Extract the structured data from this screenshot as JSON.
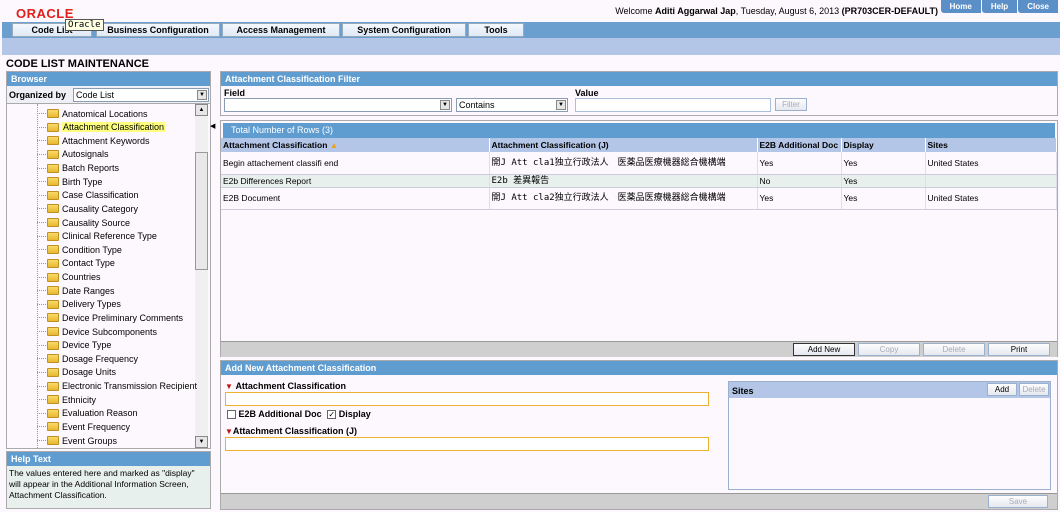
{
  "header": {
    "logo": "ORACLE",
    "tooltip": "Oracle",
    "welcome_prefix": "Welcome ",
    "user": "Aditi Aggarwal Jap",
    "date": ", Tuesday, August 6, 2013 ",
    "profile": "(PR703CER-DEFAULT)",
    "links": [
      "Home",
      "Help",
      "Close"
    ]
  },
  "nav": {
    "tabs": [
      "Code List",
      "Business Configuration",
      "Access Management",
      "System Configuration",
      "Tools"
    ]
  },
  "page_title": "CODE LIST MAINTENANCE",
  "browser": {
    "title": "Browser",
    "organized_by_label": "Organized by",
    "organized_by_value": "Code List",
    "items": [
      "Anatomical Locations",
      "Attachment Classification",
      "Attachment Keywords",
      "Autosignals",
      "Batch Reports",
      "Birth Type",
      "Case Classification",
      "Causality Category",
      "Causality Source",
      "Clinical Reference Type",
      "Condition Type",
      "Contact Type",
      "Countries",
      "Date Ranges",
      "Delivery Types",
      "Device Preliminary Comments",
      "Device Subcomponents",
      "Device Type",
      "Dosage Frequency",
      "Dosage Units",
      "Electronic Transmission Recipient",
      "Ethnicity",
      "Evaluation Reason",
      "Event Frequency",
      "Event Groups"
    ],
    "selected": "Attachment Classification"
  },
  "help": {
    "title": "Help Text",
    "text": "The values entered here and marked as \"display\" will appear in the Additional Information Screen, Attachment Classification."
  },
  "filter": {
    "title": "Attachment Classification Filter",
    "field_label": "Field",
    "field_value": "",
    "operator": "Contains",
    "value_label": "Value",
    "value": "",
    "filter_button": "Filter"
  },
  "grid": {
    "title": "Total Number of Rows (3)",
    "columns": [
      "Attachment Classification",
      "Attachment Classification (J)",
      "E2B Additional Doc",
      "Display",
      "Sites"
    ],
    "rows": [
      [
        "Begin attachement classifi end",
        "開J Att cla1独立行政法人　医薬品医療機器総合機構端",
        "Yes",
        "Yes",
        "United States"
      ],
      [
        "E2b Differences Report",
        "E2b 差異報告",
        "No",
        "Yes",
        ""
      ],
      [
        "E2B Document",
        "開J Att cla2独立行政法人　医薬品医療機器総合機構端",
        "Yes",
        "Yes",
        "United States"
      ]
    ],
    "buttons": [
      "Add New",
      "Copy",
      "Delete",
      "Print"
    ]
  },
  "form": {
    "title": "Add New Attachment Classification",
    "classification_label": "Attachment Classification",
    "classification_value": "",
    "e2b_label": "E2B Additional Doc",
    "e2b_checked": false,
    "display_label": "Display",
    "display_checked": true,
    "classification_j_label": "Attachment Classification (J)",
    "classification_j_value": "",
    "sites_title": "Sites",
    "sites_add": "Add",
    "sites_delete": "Delete",
    "save": "Save"
  }
}
